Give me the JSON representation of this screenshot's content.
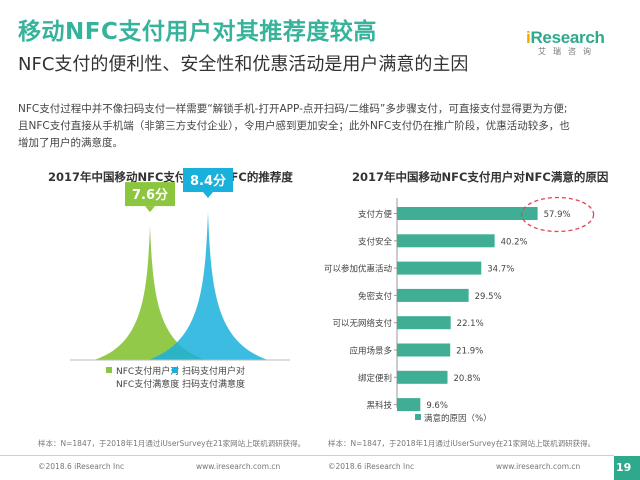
{
  "header": {
    "title": "移动NFC支付用户对其推荐度较高",
    "subtitle": "NFC支付的便利性、安全性和优惠活动是用户满意的主因",
    "logo_main": "Research",
    "logo_prefix": "i",
    "logo_sub": "艾瑞咨询"
  },
  "paragraph": [
    "NFC支付过程中并不像扫码支付一样需要“解锁手机-打开APP-点开扫码/二维码”多步骤支付，可直接支付显得更为方便;",
    "且NFC支付直接从手机端（非第三方支付企业），令用户感到更加安全；此外NFC支付仍在推广阶段，优惠活动较多，也",
    "增加了用户的满意度。"
  ],
  "chart_data": [
    {
      "type": "area",
      "title": "2017年中国移动NFC支付用户对NFC的推荐度",
      "series": [
        {
          "name": "NFC支付用户对NFC支付满意度",
          "value": 7.6,
          "value_label": "7.6分",
          "color": "#8cc63f",
          "legend_lines": [
            "NFC支付用户对",
            "NFC支付满意度"
          ]
        },
        {
          "name": "扫码支付用户对扫码支付满意度",
          "value": 8.4,
          "value_label": "8.4分",
          "color": "#1ab0dc",
          "legend_lines": [
            "扫码支付用户对",
            "扫码支付满意度"
          ]
        }
      ]
    },
    {
      "type": "bar",
      "title": "2017年中国移动NFC支付用户对NFC满意的原因",
      "categories": [
        "支付方便",
        "支付安全",
        "可以参加优惠活动",
        "免密支付",
        "可以无网络支付",
        "应用场景多",
        "绑定便利",
        "黑科技"
      ],
      "values": [
        57.9,
        40.2,
        34.7,
        29.5,
        22.1,
        21.9,
        20.8,
        9.6
      ],
      "value_labels": [
        "57.9%",
        "40.2%",
        "34.7%",
        "29.5%",
        "22.1%",
        "21.9%",
        "20.8%",
        "9.6%"
      ],
      "legend": "满意的原因（%）",
      "bar_color": "#3fae95",
      "highlight_color": "#e0445a",
      "xlim": [
        0,
        70
      ]
    }
  ],
  "notes": {
    "left": "样本：N=1847，于2018年1月通过iUserSurvey在21家网站上联机调研获得。",
    "right": "样本：N=1847，于2018年1月通过iUserSurvey在21家网站上联机调研获得。"
  },
  "footer": {
    "left_copyright": "©2018.6 iResearch Inc",
    "left_url": "www.iresearch.com.cn",
    "right_copyright": "©2018.6 iResearch Inc",
    "right_url": "www.iresearch.com.cn",
    "page": "19"
  }
}
